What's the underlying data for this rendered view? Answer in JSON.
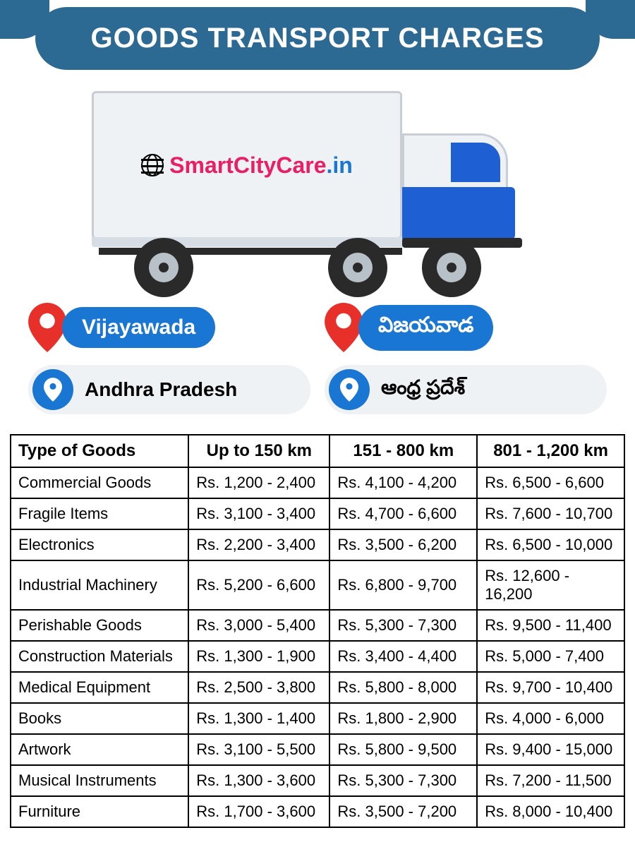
{
  "header": {
    "title": "GOODS TRANSPORT CHARGES"
  },
  "brand": {
    "name_left": "SmartCityCare",
    "name_right": ".in"
  },
  "locations": {
    "left": {
      "city": "Vijayawada",
      "state": "Andhra Pradesh"
    },
    "right": {
      "city": "విజయవాడ",
      "state": "ఆంధ్ర ప్రదేశ్"
    }
  },
  "colors": {
    "header_bg": "#2c6a94",
    "pill_blue": "#1976d2",
    "brand_pink": "#e91e63",
    "pin_red": "#e7302a",
    "truck_box": "#eef2f5",
    "truck_blue": "#1f5fd4"
  },
  "table": {
    "columns": [
      "Type of Goods",
      "Up to 150 km",
      "151 - 800 km",
      "801 - 1,200 km"
    ],
    "rows": [
      [
        "Commercial Goods",
        "Rs. 1,200 - 2,400",
        "Rs. 4,100 - 4,200",
        "Rs. 6,500 - 6,600"
      ],
      [
        "Fragile Items",
        "Rs. 3,100 - 3,400",
        "Rs. 4,700 - 6,600",
        "Rs. 7,600 - 10,700"
      ],
      [
        "Electronics",
        "Rs. 2,200 - 3,400",
        "Rs. 3,500 - 6,200",
        "Rs. 6,500 - 10,000"
      ],
      [
        "Industrial Machinery",
        "Rs. 5,200 - 6,600",
        "Rs. 6,800 - 9,700",
        "Rs. 12,600 - 16,200"
      ],
      [
        "Perishable Goods",
        "Rs. 3,000 - 5,400",
        "Rs. 5,300 - 7,300",
        "Rs. 9,500 - 11,400"
      ],
      [
        "Construction Materials",
        "Rs. 1,300 - 1,900",
        "Rs. 3,400 - 4,400",
        "Rs. 5,000 - 7,400"
      ],
      [
        "Medical Equipment",
        "Rs. 2,500 - 3,800",
        "Rs. 5,800 - 8,000",
        "Rs. 9,700 - 10,400"
      ],
      [
        "Books",
        "Rs. 1,300 - 1,400",
        "Rs. 1,800 - 2,900",
        "Rs. 4,000 - 6,000"
      ],
      [
        "Artwork",
        "Rs. 3,100 - 5,500",
        "Rs. 5,800 - 9,500",
        "Rs. 9,400 - 15,000"
      ],
      [
        "Musical Instruments",
        "Rs. 1,300 - 3,600",
        "Rs. 5,300 - 7,300",
        "Rs. 7,200 - 11,500"
      ],
      [
        "Furniture",
        "Rs. 1,700 - 3,600",
        "Rs. 3,500 - 7,200",
        "Rs. 8,000 - 10,400"
      ]
    ]
  }
}
